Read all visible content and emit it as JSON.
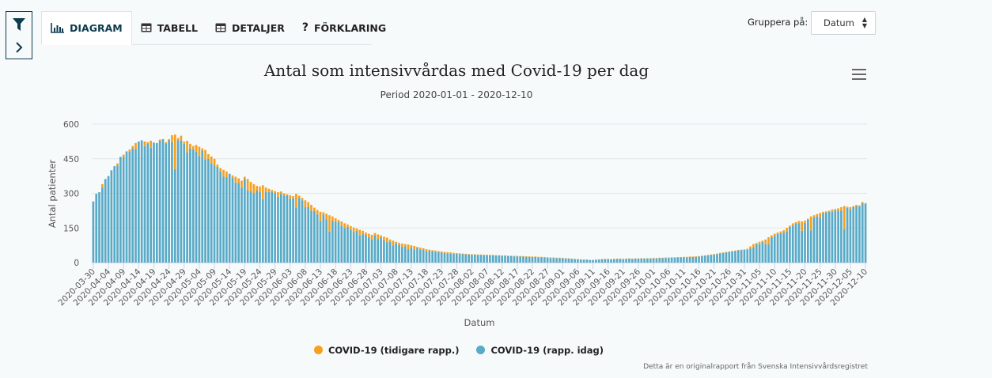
{
  "toolbar": {
    "tabs": [
      {
        "label": "DIAGRAM",
        "icon": "bar-chart-icon"
      },
      {
        "label": "TABELL",
        "icon": "table-icon"
      },
      {
        "label": "DETALJER",
        "icon": "table-icon"
      },
      {
        "label": "FÖRKLARING",
        "icon": "question-icon"
      }
    ],
    "group_label": "Gruppera på:",
    "group_value": "Datum"
  },
  "colors": {
    "tidigare": "#f7a01f",
    "idag": "#58aac7",
    "accent": "#0d3b4f"
  },
  "credit": "Detta är en originalrapport från Svenska Intensivvårdsregistret",
  "chart_data": {
    "type": "bar",
    "stacked": true,
    "title": "Antal som intensivvårdas med Covid-19 per dag",
    "subtitle": "Period 2020-01-01 - 2020-12-10",
    "xlabel": "Datum",
    "ylabel": "Antal patienter",
    "ylim": [
      0,
      600
    ],
    "yticks": [
      "0",
      "150",
      "300",
      "450",
      "600"
    ],
    "start_date": "2020-03-30",
    "end_date": "2020-12-10",
    "xtick_labels": [
      "2020-03-30",
      "2020-04-04",
      "2020-04-09",
      "2020-04-14",
      "2020-04-19",
      "2020-04-24",
      "2020-04-29",
      "2020-05-04",
      "2020-05-09",
      "2020-05-14",
      "2020-05-19",
      "2020-05-24",
      "2020-05-29",
      "2020-06-03",
      "2020-06-08",
      "2020-06-13",
      "2020-06-18",
      "2020-06-23",
      "2020-06-28",
      "2020-07-03",
      "2020-07-08",
      "2020-07-13",
      "2020-07-18",
      "2020-07-23",
      "2020-07-28",
      "2020-08-02",
      "2020-08-07",
      "2020-08-12",
      "2020-08-17",
      "2020-08-22",
      "2020-08-27",
      "2020-09-01",
      "2020-09-06",
      "2020-09-11",
      "2020-09-16",
      "2020-09-21",
      "2020-09-26",
      "2020-10-01",
      "2020-10-06",
      "2020-10-11",
      "2020-10-16",
      "2020-10-21",
      "2020-10-26",
      "2020-10-31",
      "2020-11-05",
      "2020-11-10",
      "2020-11-15",
      "2020-11-20",
      "2020-11-25",
      "2020-11-30",
      "2020-12-05",
      "2020-12-10"
    ],
    "legend": "bottom-center",
    "series": [
      {
        "name": "COVID-19 (tidigare rapp.)",
        "values": [
          0,
          0,
          0,
          15,
          0,
          0,
          0,
          0,
          10,
          0,
          10,
          0,
          10,
          10,
          25,
          0,
          0,
          20,
          5,
          30,
          0,
          0,
          5,
          0,
          5,
          5,
          30,
          150,
          10,
          20,
          10,
          50,
          20,
          15,
          30,
          40,
          10,
          40,
          20,
          30,
          30,
          10,
          15,
          30,
          25,
          0,
          10,
          25,
          20,
          30,
          10,
          50,
          40,
          40,
          20,
          25,
          60,
          20,
          15,
          10,
          10,
          20,
          10,
          10,
          5,
          15,
          10,
          60,
          10,
          10,
          30,
          20,
          25,
          15,
          20,
          40,
          10,
          25,
          70,
          20,
          15,
          10,
          20,
          20,
          10,
          15,
          20,
          10,
          25,
          15,
          10,
          15,
          20,
          10,
          20,
          10,
          15,
          20,
          10,
          20,
          5,
          10,
          15,
          10,
          20,
          10,
          15,
          5,
          10,
          5,
          10,
          5,
          5,
          5,
          5,
          5,
          5,
          5,
          5,
          5,
          5,
          3,
          3,
          3,
          2,
          2,
          2,
          2,
          2,
          2,
          2,
          2,
          2,
          2,
          2,
          2,
          2,
          2,
          2,
          2,
          2,
          2,
          2,
          2,
          2,
          2,
          2,
          2,
          2,
          2,
          2,
          2,
          2,
          2,
          2,
          1,
          1,
          1,
          1,
          1,
          1,
          1,
          1,
          1,
          1,
          1,
          1,
          1,
          1,
          1,
          1,
          1,
          1,
          1,
          1,
          1,
          1,
          1,
          1,
          1,
          1,
          1,
          1,
          1,
          1,
          2,
          2,
          2,
          2,
          2,
          2,
          2,
          2,
          2,
          2,
          2,
          2,
          2,
          2,
          2,
          2,
          2,
          2,
          2,
          2,
          2,
          2,
          2,
          2,
          2,
          2,
          2,
          2,
          2,
          2,
          2,
          5,
          10,
          15,
          5,
          10,
          5,
          20,
          30,
          10,
          10,
          5,
          10,
          10,
          15,
          5,
          10,
          5,
          10,
          40,
          10,
          5,
          60,
          10,
          10,
          20,
          5,
          5,
          5,
          10,
          5,
          10,
          15,
          100,
          5,
          10,
          5,
          5,
          5,
          5,
          3
        ]
      },
      {
        "name": "COVID-19 (rapp. idag)",
        "values": [
          265,
          298,
          305,
          325,
          362,
          375,
          400,
          418,
          420,
          458,
          458,
          482,
          480,
          495,
          493,
          525,
          530,
          505,
          517,
          498,
          520,
          518,
          528,
          535,
          517,
          530,
          522,
          405,
          530,
          530,
          515,
          478,
          495,
          490,
          480,
          462,
          485,
          448,
          450,
          430,
          420,
          415,
          395,
          372,
          370,
          385,
          368,
          347,
          345,
          325,
          362,
          312,
          310,
          300,
          312,
          305,
          275,
          305,
          305,
          305,
          300,
          285,
          298,
          290,
          291,
          277,
          278,
          238,
          280,
          270,
          240,
          242,
          225,
          223,
          208,
          180,
          208,
          187,
          135,
          180,
          177,
          175,
          158,
          150,
          155,
          143,
          132,
          138,
          117,
          123,
          120,
          110,
          100,
          118,
          102,
          108,
          97,
          88,
          90,
          75,
          85,
          76,
          67,
          70,
          58,
          65,
          57,
          63,
          55,
          57,
          48,
          51,
          49,
          47,
          45,
          43,
          41,
          40,
          39,
          37,
          36,
          37,
          36,
          35,
          35,
          34,
          34,
          33,
          33,
          32,
          32,
          31,
          31,
          30,
          30,
          29,
          29,
          28,
          28,
          27,
          27,
          26,
          26,
          25,
          25,
          24,
          24,
          23,
          23,
          22,
          21,
          20,
          20,
          19,
          19,
          19,
          18,
          17,
          16,
          15,
          14,
          13,
          12,
          12,
          11,
          11,
          12,
          13,
          14,
          15,
          15,
          14,
          15,
          16,
          16,
          15,
          16,
          17,
          16,
          17,
          17,
          18,
          17,
          18,
          18,
          18,
          18,
          19,
          19,
          20,
          20,
          21,
          21,
          22,
          22,
          23,
          23,
          24,
          24,
          25,
          26,
          28,
          29,
          31,
          33,
          35,
          37,
          40,
          42,
          44,
          46,
          48,
          50,
          53,
          54,
          55,
          55,
          60,
          65,
          80,
          80,
          90,
          80,
          80,
          108,
          115,
          125,
          125,
          130,
          135,
          155,
          160,
          170,
          170,
          138,
          172,
          185,
          140,
          195,
          200,
          195,
          215,
          217,
          220,
          220,
          227,
          225,
          225,
          145,
          237,
          230,
          240,
          245,
          243,
          257,
          255
        ]
      }
    ]
  }
}
